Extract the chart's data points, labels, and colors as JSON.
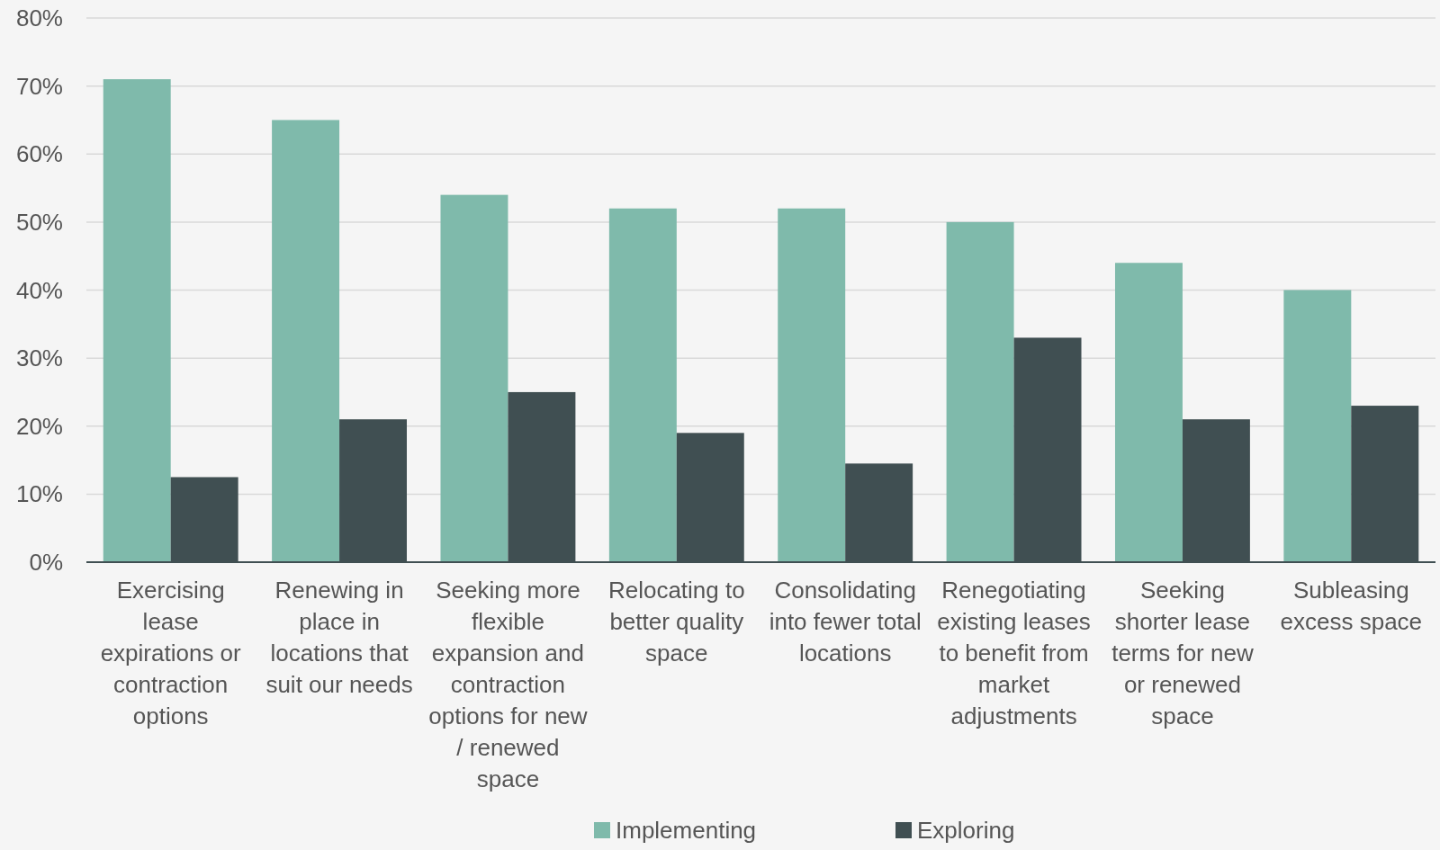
{
  "chart_data": {
    "type": "bar",
    "categories": [
      "Exercising lease expirations or contraction options",
      "Renewing in place in locations that suit our needs",
      "Seeking more flexible expansion and contraction options for new / renewed space",
      "Relocating to better quality space",
      "Consolidating into fewer total locations",
      "Renegotiating existing leases to benefit from market adjustments",
      "Seeking shorter lease terms for new or renewed space",
      "Subleasing excess space"
    ],
    "series": [
      {
        "name": "Implementing",
        "color": "#7fbaab",
        "values": [
          71,
          65,
          54,
          52,
          52,
          50,
          44,
          40
        ]
      },
      {
        "name": "Exploring",
        "color": "#404f52",
        "values": [
          12.5,
          21,
          25,
          19,
          14.5,
          33,
          21,
          23
        ]
      }
    ],
    "ylim": [
      0,
      80
    ],
    "yticks": [
      {
        "value": 0,
        "label": "0%"
      },
      {
        "value": 10,
        "label": "10%"
      },
      {
        "value": 20,
        "label": "20%"
      },
      {
        "value": 30,
        "label": "30%"
      },
      {
        "value": 40,
        "label": "40%"
      },
      {
        "value": 50,
        "label": "50%"
      },
      {
        "value": 60,
        "label": "60%"
      },
      {
        "value": 70,
        "label": "70%"
      },
      {
        "value": 80,
        "label": "80%"
      }
    ],
    "grid": "y",
    "legend": "bottom"
  }
}
